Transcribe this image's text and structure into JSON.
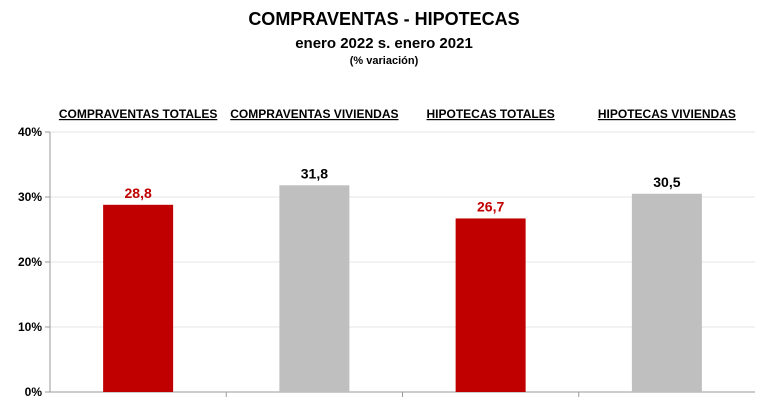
{
  "title": "COMPRAVENTAS - HIPOTECAS",
  "subtitle": "enero 2022  s. enero 2021",
  "note": "(% variación)",
  "chart_data": {
    "type": "bar",
    "categories": [
      "COMPRAVENTAS TOTALES",
      "COMPRAVENTAS VIVIENDAS",
      "HIPOTECAS TOTALES",
      "HIPOTECAS VIVIENDAS"
    ],
    "values": [
      28.8,
      31.8,
      26.7,
      30.5
    ],
    "data_labels": [
      "28,8",
      "31,8",
      "26,7",
      "30,5"
    ],
    "colors": [
      "#c00000",
      "#bfbfbf",
      "#c00000",
      "#bfbfbf"
    ],
    "label_colors": [
      "#c00000",
      "#000000",
      "#c00000",
      "#000000"
    ],
    "ylim": [
      0,
      40
    ],
    "yticks": [
      0,
      10,
      20,
      30,
      40
    ],
    "ytick_labels": [
      "0%",
      "10%",
      "20%",
      "30%",
      "40%"
    ],
    "grid": true,
    "legend": "none"
  }
}
